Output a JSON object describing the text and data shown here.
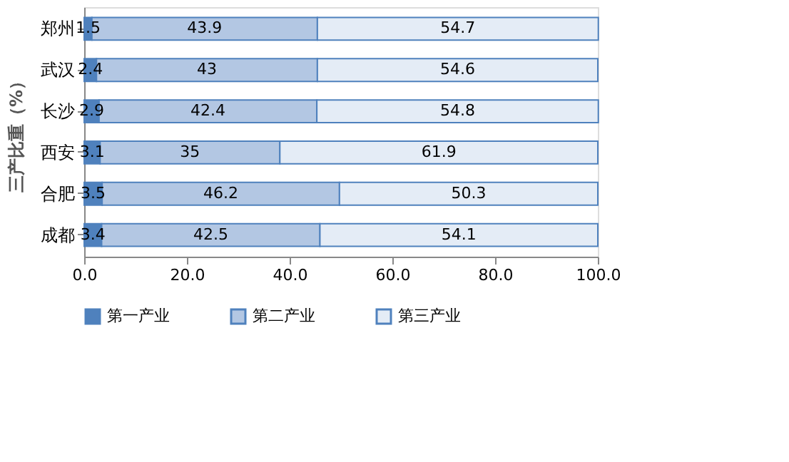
{
  "chart_data": {
    "type": "bar",
    "orientation": "horizontal",
    "stacked": true,
    "ylabel": "三产比重（%）",
    "categories": [
      "郑州",
      "武汉",
      "长沙",
      "西安",
      "合肥",
      "成都"
    ],
    "series": [
      {
        "name": "第一产业",
        "color": "#4f81bd",
        "values": [
          1.5,
          2.4,
          2.9,
          3.1,
          3.5,
          3.4
        ]
      },
      {
        "name": "第二产业",
        "color": "#b3c7e3",
        "values": [
          43.9,
          43,
          42.4,
          35,
          46.2,
          42.5
        ]
      },
      {
        "name": "第三产业",
        "color": "#e4ecf6",
        "values": [
          54.7,
          54.6,
          54.8,
          61.9,
          50.3,
          54.1
        ]
      }
    ],
    "xlim": [
      0,
      100
    ],
    "xticks": [
      {
        "value": 0,
        "label": "0.0"
      },
      {
        "value": 20,
        "label": "20.0"
      },
      {
        "value": 40,
        "label": "40.0"
      },
      {
        "value": 60,
        "label": "60.0"
      },
      {
        "value": 80,
        "label": "80.0"
      },
      {
        "value": 100,
        "label": "100.0"
      }
    ],
    "data_labels": true,
    "legend": "bottom",
    "grid": false
  }
}
